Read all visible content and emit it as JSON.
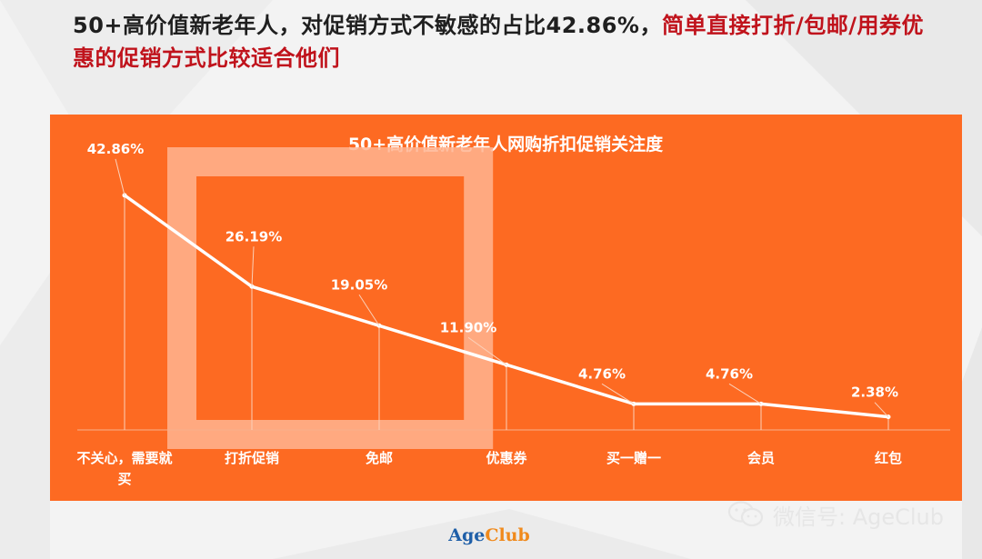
{
  "headline": {
    "main": "50+高价值新老年人，对促销方式不敏感的占比42.86%，",
    "highlight": "简单直接打折/包邮/用券优惠的促销方式比较适合他们"
  },
  "chart_data": {
    "type": "line",
    "title": "50+高价值新老年人网购折扣促销关注度",
    "categories": [
      "不关心，需要就买",
      "打折促销",
      "免邮",
      "优惠券",
      "买一赠一",
      "会员",
      "红包"
    ],
    "values": [
      42.86,
      26.19,
      19.05,
      11.9,
      4.76,
      4.76,
      2.38
    ],
    "value_labels": [
      "42.86%",
      "26.19%",
      "19.05%",
      "11.90%",
      "4.76%",
      "4.76%",
      "2.38%"
    ],
    "tick_label_lines": [
      [
        "不关心，需要就",
        "买"
      ],
      [
        "打折促销"
      ],
      [
        "免邮"
      ],
      [
        "优惠券"
      ],
      [
        "买一赠一"
      ],
      [
        "会员"
      ],
      [
        "红包"
      ]
    ],
    "ylim": [
      0,
      45
    ],
    "grid": false,
    "legend": "none",
    "colors": {
      "background": "#fd6a22",
      "line": "#ffffff",
      "highlight_box": "#ffb490"
    }
  },
  "watermark": {
    "text": "微信号: AgeClub",
    "icon": "wechat-icon"
  },
  "brand": {
    "age": "Age",
    "club": "Club"
  }
}
